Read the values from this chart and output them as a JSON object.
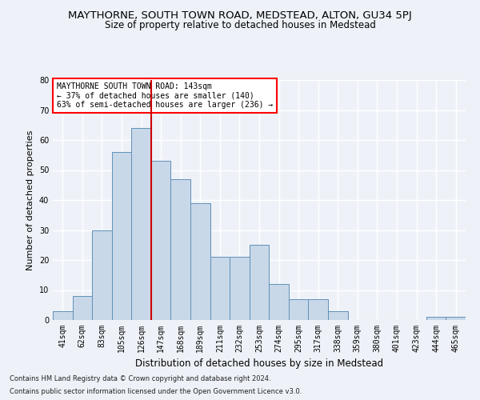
{
  "title": "MAYTHORNE, SOUTH TOWN ROAD, MEDSTEAD, ALTON, GU34 5PJ",
  "subtitle": "Size of property relative to detached houses in Medstead",
  "xlabel": "Distribution of detached houses by size in Medstead",
  "ylabel": "Number of detached properties",
  "bar_color": "#c8d8e8",
  "bar_edge_color": "#6090b8",
  "categories": [
    "41sqm",
    "62sqm",
    "83sqm",
    "105sqm",
    "126sqm",
    "147sqm",
    "168sqm",
    "189sqm",
    "211sqm",
    "232sqm",
    "253sqm",
    "274sqm",
    "295sqm",
    "317sqm",
    "338sqm",
    "359sqm",
    "380sqm",
    "401sqm",
    "423sqm",
    "444sqm",
    "465sqm"
  ],
  "values": [
    3,
    8,
    30,
    56,
    64,
    53,
    47,
    39,
    21,
    21,
    25,
    12,
    7,
    7,
    3,
    0,
    0,
    0,
    0,
    1,
    1
  ],
  "ylim": [
    0,
    80
  ],
  "yticks": [
    0,
    10,
    20,
    30,
    40,
    50,
    60,
    70,
    80
  ],
  "red_line_index": 5,
  "annotation_line1": "MAYTHORNE SOUTH TOWN ROAD: 143sqm",
  "annotation_line2": "← 37% of detached houses are smaller (140)",
  "annotation_line3": "63% of semi-detached houses are larger (236) →",
  "footer_line1": "Contains HM Land Registry data © Crown copyright and database right 2024.",
  "footer_line2": "Contains public sector information licensed under the Open Government Licence v3.0.",
  "background_color": "#eef2f8",
  "plot_bg_color": "#eef2f8",
  "grid_color": "#ffffff",
  "title_fontsize": 9.5,
  "subtitle_fontsize": 8.5,
  "ylabel_fontsize": 8,
  "xlabel_fontsize": 8.5,
  "tick_fontsize": 7,
  "annot_fontsize": 7,
  "footer_fontsize": 6,
  "red_line_color": "#cc0000"
}
